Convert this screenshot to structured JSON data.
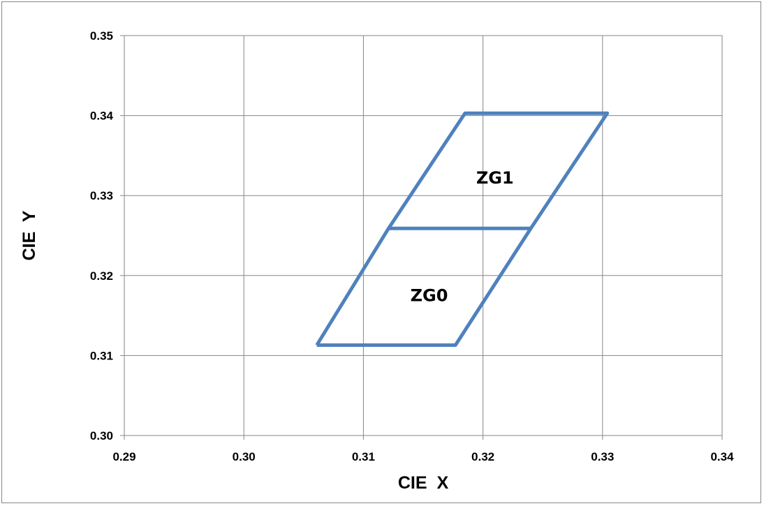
{
  "chart_data": {
    "type": "line",
    "title": "",
    "xlabel": "CIE  X",
    "ylabel": "CIE  Y",
    "xlim": [
      0.29,
      0.34
    ],
    "ylim": [
      0.3,
      0.35
    ],
    "x_ticks": [
      "0.29",
      "0.30",
      "0.31",
      "0.32",
      "0.33",
      "0.34"
    ],
    "y_ticks": [
      "0.30",
      "0.31",
      "0.32",
      "0.33",
      "0.34",
      "0.35"
    ],
    "grid": true,
    "legend": "none",
    "line_color": "#4F81BD",
    "series": [
      {
        "points": [
          {
            "x": 0.3061,
            "y": 0.3113
          },
          {
            "x": 0.3121,
            "y": 0.3259
          },
          {
            "x": 0.3185,
            "y": 0.3403
          },
          {
            "x": 0.3304,
            "y": 0.3403
          },
          {
            "x": 0.324,
            "y": 0.3259
          },
          {
            "x": 0.3177,
            "y": 0.3113
          },
          {
            "x": 0.3061,
            "y": 0.3113
          }
        ]
      },
      {
        "points": [
          {
            "x": 0.3121,
            "y": 0.3259
          },
          {
            "x": 0.324,
            "y": 0.3259
          }
        ]
      }
    ],
    "annotations": [
      {
        "text": "ZG1",
        "x": 0.321,
        "y": 0.3315
      },
      {
        "text": "ZG0",
        "x": 0.3155,
        "y": 0.3168
      }
    ]
  }
}
